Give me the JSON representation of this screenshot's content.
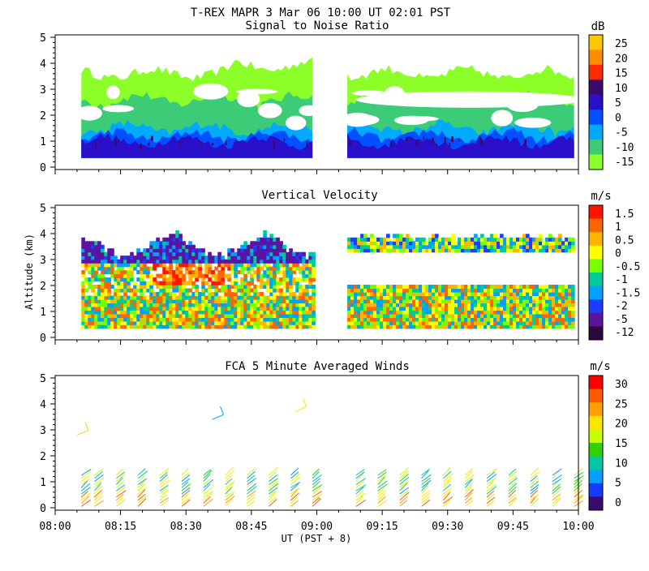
{
  "header": {
    "title": "T-REX   MAPR   3 Mar 06   10:00 UT   02:01   PST"
  },
  "colors": {
    "white": "#ffffff",
    "axis": "#000000"
  },
  "chart_data": [
    {
      "id": "snr",
      "type": "heatmap",
      "title": "Signal to Noise Ratio",
      "ylabel": "",
      "units": "dB",
      "ylim": [
        0,
        5
      ],
      "yticks": [
        "0",
        "1",
        "2",
        "3",
        "4",
        "5"
      ],
      "data_gap": [
        "08:59",
        "09:07"
      ],
      "colorbar": {
        "labels": [
          "25",
          "20",
          "15",
          "10",
          "5",
          "0",
          "-5",
          "-10",
          "-15"
        ],
        "colors": [
          "#ffc800",
          "#ff8c00",
          "#ff2a00",
          "#3c0a6e",
          "#2a10c8",
          "#0050ff",
          "#00aaff",
          "#3ccc78",
          "#8cff28"
        ]
      },
      "layers": [
        {
          "label": "greenish fill",
          "color": "#8cff28",
          "top_km": 3.6
        },
        {
          "label": "-10 dB",
          "color": "#3ccc78",
          "top_km": 2.6
        },
        {
          "label": "-5 dB",
          "color": "#00aaff",
          "top_km": 1.5
        },
        {
          "label": "0 dB",
          "color": "#0050ff",
          "top_km": 1.2
        },
        {
          "label": "5 dB",
          "color": "#2a10c8",
          "top_km": 1.0
        }
      ]
    },
    {
      "id": "vvel",
      "type": "heatmap",
      "title": "Vertical Velocity",
      "ylabel": "Altitude (km)",
      "units": "m/s",
      "ylim": [
        0,
        5
      ],
      "yticks": [
        "0",
        "1",
        "2",
        "3",
        "4",
        "5"
      ],
      "data_gap": [
        "08:59",
        "09:07"
      ],
      "colorbar": {
        "labels": [
          "1.5",
          "1",
          "0.5",
          "0",
          "-0.5",
          "-1",
          "-1.5",
          "-2",
          "-5",
          "-12"
        ],
        "colors": [
          "#ff1400",
          "#ff6400",
          "#ffb400",
          "#ffff00",
          "#78ff00",
          "#00cc96",
          "#00a0ff",
          "#1e3cff",
          "#5a14a0",
          "#2a0a3c"
        ]
      }
    },
    {
      "id": "winds",
      "type": "scatter",
      "title": "FCA 5 Minute Averaged Winds",
      "ylabel": "",
      "units": "m/s",
      "xlabel": "UT  (PST + 8)",
      "ylim": [
        0,
        5
      ],
      "yticks": [
        "0",
        "1",
        "2",
        "3",
        "4",
        "5"
      ],
      "xticks": [
        "08:00",
        "08:15",
        "08:30",
        "08:45",
        "09:00",
        "09:15",
        "09:30",
        "09:45",
        "10:00"
      ],
      "xlim_minutes": [
        0,
        120
      ],
      "colorbar": {
        "labels": [
          "30",
          "25",
          "20",
          "15",
          "10",
          "5",
          "0"
        ],
        "colors": [
          "#ff0000",
          "#ff5a00",
          "#ffa000",
          "#ffe600",
          "#c8ff00",
          "#32d200",
          "#00c8a0",
          "#00a0ff",
          "#143cff",
          "#3c0a6e"
        ]
      },
      "profiles_minutes": [
        6,
        9,
        14,
        19,
        24,
        29,
        34,
        39,
        44,
        49,
        54,
        59,
        69,
        74,
        79,
        84,
        89,
        94,
        99,
        104,
        109,
        114,
        119
      ]
    }
  ]
}
